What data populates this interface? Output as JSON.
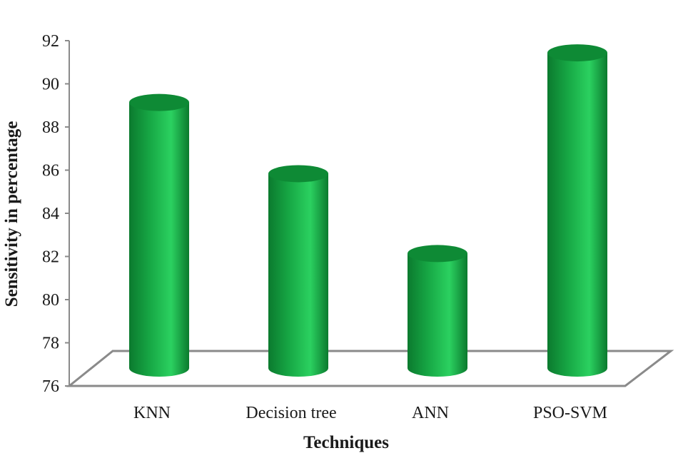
{
  "chart_data": {
    "type": "bar",
    "categories": [
      "KNN",
      "Decision tree",
      "ANN",
      "PSO-SVM"
    ],
    "values": [
      89.4,
      86.1,
      82.4,
      91.7
    ],
    "xlabel": "Techniques",
    "ylabel": "Sensitivity in percentage",
    "ylim": [
      76,
      92
    ],
    "yticks": [
      76,
      78,
      80,
      82,
      84,
      86,
      88,
      90,
      92
    ],
    "grid": false,
    "legend": "none",
    "bar_style": "3d-cylinder",
    "colors": {
      "bar_dark": "#0b7a2e",
      "bar_mid": "#17a845",
      "bar_light": "#2bd160",
      "bar_top": "#0e8a35",
      "floor": "#8a8a8a"
    }
  }
}
